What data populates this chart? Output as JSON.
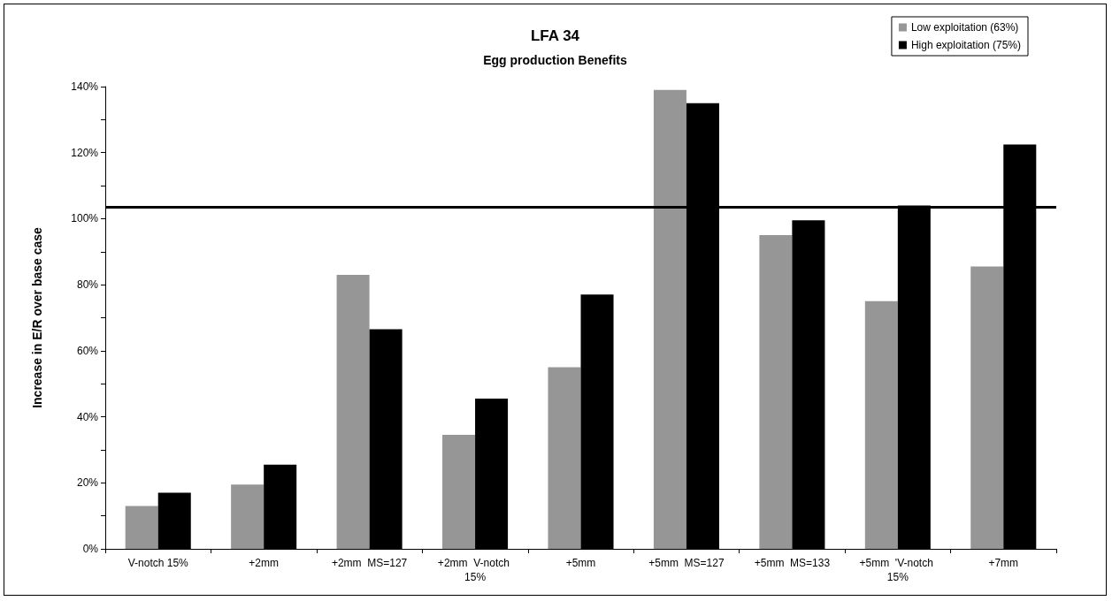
{
  "chart_data": {
    "type": "bar",
    "title": "LFA 34",
    "subtitle": "Egg production Benefits",
    "ylabel": "Increase in E/R over base case",
    "categories": [
      "V-notch 15%",
      "+2mm",
      "+2mm  MS=127",
      "+2mm  V-notch 15%",
      "+5mm",
      "+5mm  MS=127",
      "+5mm  MS=133",
      "+5mm  'V-notch 15%",
      "+7mm"
    ],
    "series": [
      {
        "name": "Low exploitation (63%)",
        "color": "#969696",
        "values": [
          13,
          19.5,
          83,
          34.5,
          55,
          139,
          95,
          75,
          85.5
        ]
      },
      {
        "name": "High exploitation (75%)",
        "color": "#000000",
        "values": [
          17,
          25.5,
          66.5,
          45.5,
          77,
          135,
          99.5,
          104,
          122.5
        ]
      }
    ],
    "ylim": [
      0,
      140
    ],
    "yticks": [
      {
        "value": 0,
        "label": "0%"
      },
      {
        "value": 10,
        "label": null
      },
      {
        "value": 20,
        "label": "20%"
      },
      {
        "value": 30,
        "label": null
      },
      {
        "value": 40,
        "label": "40%"
      },
      {
        "value": 50,
        "label": null
      },
      {
        "value": 60,
        "label": "60%"
      },
      {
        "value": 70,
        "label": null
      },
      {
        "value": 80,
        "label": "80%"
      },
      {
        "value": 90,
        "label": null
      },
      {
        "value": 100,
        "label": "100%"
      },
      {
        "value": 110,
        "label": null
      },
      {
        "value": 120,
        "label": "120%"
      },
      {
        "value": 130,
        "label": null
      },
      {
        "value": 140,
        "label": "140%"
      }
    ],
    "ref_lines": [
      {
        "axis": "y",
        "value": 103.5,
        "color": "#000000"
      }
    ],
    "grid": false,
    "legend": "top right"
  }
}
